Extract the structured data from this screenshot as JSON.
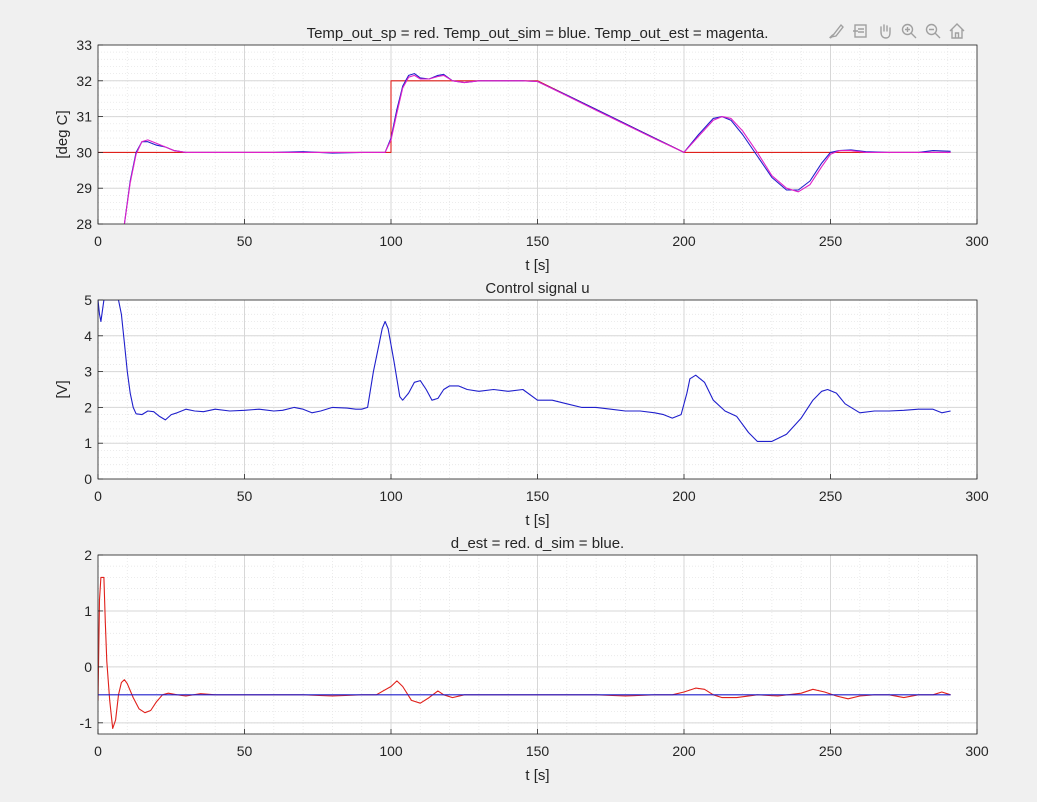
{
  "toolbar": {
    "icons": [
      "brush-icon",
      "export-icon",
      "pan-icon",
      "zoom-in-icon",
      "zoom-out-icon",
      "home-icon"
    ]
  },
  "colors": {
    "background": "#f0f0f0",
    "axes_bg": "#ffffff",
    "grid": "#d7d7d7",
    "red": "#e0201b",
    "blue": "#1f1fcc",
    "magenta": "#e020c8",
    "text": "#262626"
  },
  "chart_data": [
    {
      "type": "line",
      "title": "Temp_out_sp = red. Temp_out_sim = blue. Temp_out_est = magenta.",
      "xlabel": "t [s]",
      "ylabel": "[deg C]",
      "xlim": [
        0,
        300
      ],
      "ylim": [
        28,
        33
      ],
      "xticks": [
        0,
        50,
        100,
        150,
        200,
        250,
        300
      ],
      "yticks": [
        28,
        29,
        30,
        31,
        32,
        33
      ],
      "grid": "major and minor",
      "series": [
        {
          "color": "red",
          "x": [
            0,
            100,
            100,
            150,
            200,
            250,
            250,
            291
          ],
          "y": [
            30,
            30,
            32,
            32,
            30,
            30,
            30,
            30
          ]
        },
        {
          "color": "blue",
          "x": [
            9,
            11,
            13,
            15,
            17,
            20,
            23,
            26,
            30,
            40,
            50,
            60,
            70,
            80,
            90,
            98,
            100,
            102,
            104,
            106,
            108,
            110,
            113,
            116,
            118,
            121,
            125,
            130,
            135,
            140,
            145,
            150,
            160,
            170,
            180,
            190,
            200,
            205,
            210,
            213,
            216,
            220,
            225,
            230,
            235,
            239,
            243,
            247,
            250,
            253,
            257,
            262,
            270,
            280,
            285,
            291
          ],
          "y": [
            28,
            29.2,
            30.0,
            30.3,
            30.3,
            30.2,
            30.15,
            30.05,
            30.0,
            30.0,
            30.0,
            30.0,
            30.02,
            29.98,
            30.0,
            30.0,
            30.4,
            31.2,
            31.85,
            32.15,
            32.2,
            32.08,
            32.05,
            32.15,
            32.18,
            32.0,
            31.95,
            32.0,
            32.0,
            32.0,
            32.0,
            31.98,
            31.6,
            31.2,
            30.8,
            30.4,
            30.0,
            30.5,
            30.95,
            31.0,
            30.9,
            30.5,
            29.9,
            29.3,
            28.95,
            28.95,
            29.2,
            29.7,
            30.0,
            30.05,
            30.07,
            30.02,
            30.0,
            30.0,
            30.05,
            30.03
          ]
        },
        {
          "color": "magenta",
          "x": [
            9,
            11,
            13,
            15,
            17,
            20,
            23,
            26,
            30,
            40,
            50,
            60,
            70,
            80,
            90,
            98,
            100,
            102,
            104,
            106,
            108,
            110,
            113,
            116,
            118,
            121,
            125,
            130,
            135,
            140,
            145,
            150,
            160,
            170,
            180,
            190,
            200,
            205,
            210,
            213,
            216,
            220,
            225,
            230,
            235,
            239,
            243,
            247,
            250,
            253,
            257,
            262,
            270,
            280,
            285,
            291
          ],
          "y": [
            28,
            29.15,
            29.95,
            30.3,
            30.35,
            30.25,
            30.15,
            30.05,
            30.0,
            30.0,
            30.0,
            30.0,
            30.0,
            30.0,
            30.0,
            30.0,
            30.35,
            31.1,
            31.8,
            32.1,
            32.15,
            32.05,
            32.05,
            32.12,
            32.15,
            32.0,
            31.95,
            32.0,
            32.0,
            32.0,
            32.0,
            31.98,
            31.58,
            31.18,
            30.78,
            30.38,
            30.0,
            30.45,
            30.9,
            31.0,
            30.95,
            30.6,
            30.0,
            29.35,
            29.0,
            28.9,
            29.1,
            29.6,
            29.95,
            30.05,
            30.05,
            30.0,
            30.0,
            30.0,
            30.0,
            30.0
          ]
        }
      ]
    },
    {
      "type": "line",
      "title": "Control signal u",
      "xlabel": "t [s]",
      "ylabel": "[V]",
      "xlim": [
        0,
        300
      ],
      "ylim": [
        0,
        5
      ],
      "xticks": [
        0,
        50,
        100,
        150,
        200,
        250,
        300
      ],
      "yticks": [
        0,
        1,
        2,
        3,
        4,
        5
      ],
      "grid": "major and minor",
      "series": [
        {
          "color": "blue",
          "x": [
            0,
            0.5,
            1,
            2,
            3,
            5,
            7,
            8,
            9,
            10,
            11,
            12,
            13,
            15,
            17,
            19,
            21,
            23,
            25,
            27,
            30,
            33,
            36,
            40,
            45,
            50,
            55,
            60,
            63,
            67,
            70,
            73,
            76,
            80,
            85,
            88,
            90,
            92,
            94,
            96,
            97,
            98,
            99,
            101,
            103,
            104,
            106,
            108,
            110,
            112,
            114,
            116,
            118,
            120,
            123,
            126,
            130,
            135,
            140,
            145,
            150,
            155,
            160,
            165,
            170,
            175,
            180,
            185,
            190,
            193,
            196,
            199,
            201,
            202,
            204,
            207,
            210,
            214,
            218,
            222,
            225,
            230,
            235,
            240,
            244,
            247,
            249,
            252,
            255,
            260,
            265,
            270,
            275,
            280,
            285,
            288,
            291
          ],
          "y": [
            5,
            4.6,
            4.4,
            5,
            5,
            5,
            5,
            4.6,
            3.8,
            3.0,
            2.4,
            2.0,
            1.82,
            1.8,
            1.9,
            1.88,
            1.75,
            1.65,
            1.8,
            1.85,
            1.95,
            1.9,
            1.88,
            1.95,
            1.9,
            1.92,
            1.95,
            1.9,
            1.92,
            2.0,
            1.95,
            1.85,
            1.9,
            2.0,
            1.98,
            1.95,
            1.95,
            2.0,
            3.0,
            3.8,
            4.2,
            4.4,
            4.2,
            3.3,
            2.3,
            2.2,
            2.4,
            2.7,
            2.75,
            2.5,
            2.2,
            2.25,
            2.5,
            2.6,
            2.6,
            2.5,
            2.45,
            2.5,
            2.45,
            2.5,
            2.2,
            2.2,
            2.1,
            2.0,
            2.0,
            1.95,
            1.9,
            1.9,
            1.85,
            1.8,
            1.7,
            1.8,
            2.4,
            2.8,
            2.9,
            2.7,
            2.2,
            1.9,
            1.75,
            1.3,
            1.05,
            1.05,
            1.25,
            1.7,
            2.2,
            2.45,
            2.5,
            2.4,
            2.1,
            1.85,
            1.9,
            1.9,
            1.92,
            1.95,
            1.95,
            1.85,
            1.9
          ]
        }
      ]
    },
    {
      "type": "line",
      "title": "d_est = red. d_sim = blue.",
      "xlabel": "t [s]",
      "ylabel": "",
      "xlim": [
        0,
        300
      ],
      "ylim": [
        -1.2,
        2
      ],
      "xticks": [
        0,
        50,
        100,
        150,
        200,
        250,
        300
      ],
      "yticks": [
        -1,
        0,
        1,
        2
      ],
      "grid": "major and minor",
      "series": [
        {
          "color": "red",
          "x": [
            0,
            0.5,
            1,
            2,
            2.5,
            3,
            4,
            5,
            6,
            7,
            8,
            9,
            10,
            12,
            14,
            16,
            18,
            20,
            22,
            24,
            27,
            30,
            35,
            40,
            50,
            60,
            70,
            80,
            90,
            95,
            100,
            102,
            104,
            107,
            110,
            113,
            116,
            118,
            121,
            125,
            130,
            140,
            150,
            160,
            170,
            180,
            190,
            196,
            200,
            204,
            207,
            210,
            213,
            218,
            225,
            232,
            240,
            244,
            248,
            252,
            256,
            260,
            265,
            270,
            275,
            280,
            285,
            288,
            291
          ],
          "y": [
            -0.6,
            1.2,
            1.6,
            1.6,
            0.8,
            0.1,
            -0.6,
            -1.1,
            -0.95,
            -0.5,
            -0.28,
            -0.23,
            -0.3,
            -0.55,
            -0.75,
            -0.82,
            -0.78,
            -0.62,
            -0.5,
            -0.47,
            -0.5,
            -0.52,
            -0.48,
            -0.5,
            -0.5,
            -0.5,
            -0.5,
            -0.52,
            -0.5,
            -0.5,
            -0.35,
            -0.25,
            -0.35,
            -0.6,
            -0.65,
            -0.55,
            -0.43,
            -0.5,
            -0.55,
            -0.5,
            -0.5,
            -0.5,
            -0.5,
            -0.5,
            -0.5,
            -0.52,
            -0.5,
            -0.5,
            -0.45,
            -0.38,
            -0.4,
            -0.5,
            -0.55,
            -0.55,
            -0.5,
            -0.52,
            -0.47,
            -0.4,
            -0.45,
            -0.52,
            -0.57,
            -0.52,
            -0.5,
            -0.5,
            -0.55,
            -0.5,
            -0.5,
            -0.45,
            -0.5
          ]
        },
        {
          "color": "blue",
          "x": [
            0,
            291
          ],
          "y": [
            -0.5,
            -0.5
          ]
        }
      ]
    }
  ]
}
